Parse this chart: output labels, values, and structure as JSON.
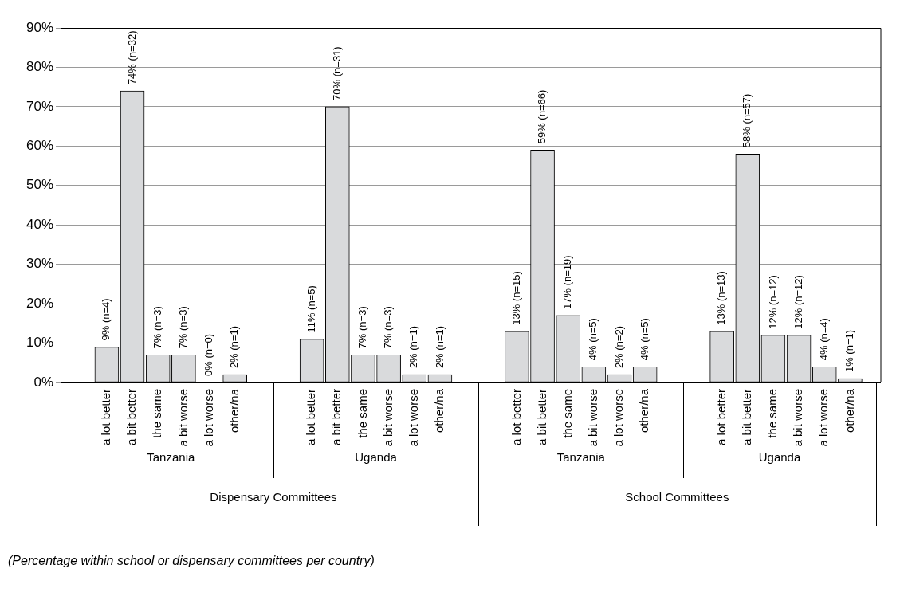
{
  "chart_data": {
    "type": "bar",
    "categories": [
      "a lot better",
      "a bit better",
      "the same",
      "a bit worse",
      "a lot worse",
      "other/na",
      "a lot better",
      "a bit better",
      "the same",
      "a bit worse",
      "a lot worse",
      "other/na",
      "a lot better",
      "a bit better",
      "the same",
      "a bit worse",
      "a lot worse",
      "other/na",
      "a lot better",
      "a bit better",
      "the same",
      "a bit worse",
      "a lot worse",
      "other/na"
    ],
    "values": [
      9,
      74,
      7,
      7,
      0,
      2,
      11,
      70,
      7,
      7,
      2,
      2,
      13,
      59,
      17,
      4,
      2,
      4,
      13,
      58,
      12,
      12,
      4,
      1
    ],
    "value_labels": [
      "9% (n=4)",
      "74% (n=32)",
      "7% (n=3)",
      "7% (n=3)",
      "0% (n=0)",
      "2% (n=1)",
      "11% (n=5)",
      "70% (n=31)",
      "7% (n=3)",
      "7% (n=3)",
      "2% (n=1)",
      "2% (n=1)",
      "13% (n=15)",
      "59% (n=66)",
      "17% (n=19)",
      "4% (n=5)",
      "2% (n=2)",
      "4% (n=5)",
      "13% (n=13)",
      "58% (n=57)",
      "12% (n=12)",
      "12% (n=12)",
      "4% (n=4)",
      "1% (n=1)"
    ],
    "color": "#d9dadc",
    "ylim": [
      0,
      90
    ],
    "yticks": [
      {
        "value": 0,
        "label": "0%"
      },
      {
        "value": 10,
        "label": "10%"
      },
      {
        "value": 20,
        "label": "20%"
      },
      {
        "value": 30,
        "label": "30%"
      },
      {
        "value": 40,
        "label": "40%"
      },
      {
        "value": 50,
        "label": "50%"
      },
      {
        "value": 60,
        "label": "60%"
      },
      {
        "value": 70,
        "label": "70%"
      },
      {
        "value": 80,
        "label": "80%"
      },
      {
        "value": 90,
        "label": "90%"
      }
    ],
    "grid": "y",
    "legend": false,
    "annotations": [
      "Tanzania",
      "Uganda",
      "Tanzania",
      "Uganda",
      "Dispensary Committees",
      "School Committees",
      "(Percentage within school or dispensary committees per country)"
    ]
  }
}
